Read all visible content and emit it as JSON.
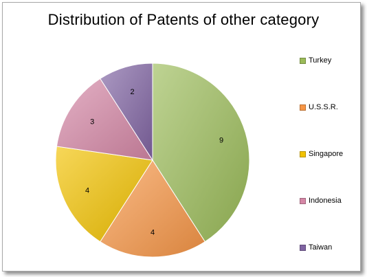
{
  "chart_data": {
    "type": "pie",
    "title": "Distribution of Patents of other category",
    "categories": [
      "Turkey",
      "U.S.S.R.",
      "Singapore",
      "Indonesia",
      "Taiwan"
    ],
    "values": [
      9,
      4,
      4,
      3,
      2
    ],
    "colors": [
      "#9bbb59",
      "#f79646",
      "#f2c200",
      "#d587a6",
      "#8064a2"
    ],
    "legend_position": "right",
    "data_labels": true
  }
}
